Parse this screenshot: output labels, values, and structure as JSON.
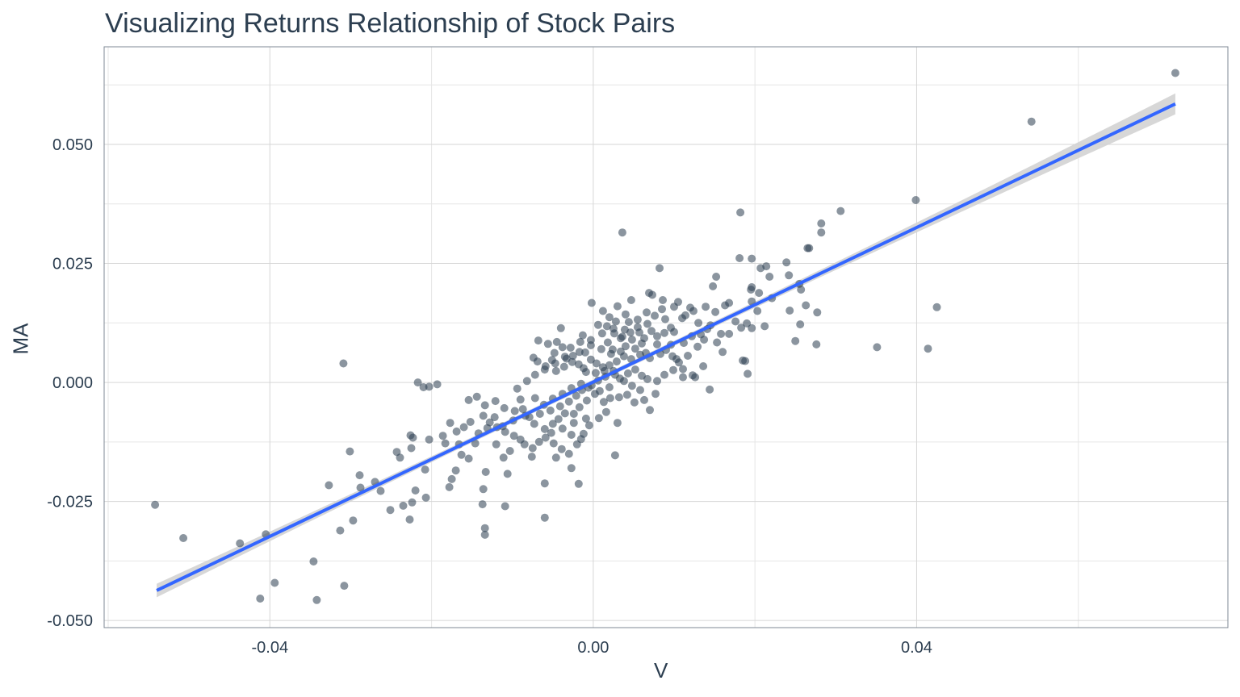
{
  "chart_data": {
    "type": "scatter",
    "title": "Visualizing Returns Relationship of Stock Pairs",
    "xlabel": "V",
    "ylabel": "MA",
    "xlim": [
      -0.0605,
      0.0785
    ],
    "ylim": [
      -0.0515,
      0.0705
    ],
    "x_ticks": [
      -0.04,
      0.0,
      0.04
    ],
    "x_tick_labels": [
      "-0.04",
      "0.00",
      "0.04"
    ],
    "y_ticks": [
      -0.05,
      -0.025,
      0.0,
      0.025,
      0.05
    ],
    "y_tick_labels": [
      "-0.050",
      "-0.025",
      "0.000",
      "0.025",
      "0.050"
    ],
    "grid": true,
    "point_color": "#2c3e50",
    "trend_color": "#3366ff",
    "band_color": "#d3d3d3",
    "trend_line": {
      "x": [
        -0.054,
        0.072
      ],
      "y": [
        -0.0437,
        0.0585
      ],
      "band_halfwidth_ends": 0.0022,
      "band_halfwidth_center": 0.0005
    },
    "points": [
      [
        0.072,
        0.065
      ],
      [
        0.0542,
        0.0548
      ],
      [
        0.0399,
        0.0383
      ],
      [
        0.0306,
        0.036
      ],
      [
        0.0182,
        0.0357
      ],
      [
        0.0282,
        0.0334
      ],
      [
        0.0282,
        0.0315
      ],
      [
        0.0036,
        0.0315
      ],
      [
        0.0267,
        0.0282
      ],
      [
        0.0265,
        0.0282
      ],
      [
        0.0239,
        0.0252
      ],
      [
        0.0181,
        0.0261
      ],
      [
        0.0196,
        0.026
      ],
      [
        0.0214,
        0.0244
      ],
      [
        0.0207,
        0.024
      ],
      [
        0.0082,
        0.024
      ],
      [
        0.0218,
        0.0222
      ],
      [
        0.0242,
        0.0225
      ],
      [
        0.0255,
        0.0207
      ],
      [
        0.0257,
        0.0195
      ],
      [
        0.0196,
        0.02
      ],
      [
        0.0195,
        0.0195
      ],
      [
        0.0205,
        0.0188
      ],
      [
        0.0221,
        0.0177
      ],
      [
        0.0152,
        0.0222
      ],
      [
        0.0148,
        0.0202
      ],
      [
        0.0069,
        0.0188
      ],
      [
        0.0073,
        0.0184
      ],
      [
        0.0086,
        0.0173
      ],
      [
        0.0047,
        0.0173
      ],
      [
        -0.0002,
        0.0167
      ],
      [
        0.0105,
        0.0169
      ],
      [
        0.0168,
        0.0167
      ],
      [
        0.0163,
        0.0162
      ],
      [
        0.0139,
        0.0159
      ],
      [
        0.012,
        0.0157
      ],
      [
        0.0124,
        0.015
      ],
      [
        0.0151,
        0.0148
      ],
      [
        0.0196,
        0.017
      ],
      [
        0.0203,
        0.015
      ],
      [
        0.0243,
        0.0151
      ],
      [
        0.0263,
        0.0162
      ],
      [
        0.0277,
        0.0147
      ],
      [
        0.0425,
        0.0158
      ],
      [
        0.0256,
        0.0122
      ],
      [
        0.0212,
        0.0118
      ],
      [
        0.0196,
        0.0114
      ],
      [
        0.0183,
        0.0115
      ],
      [
        0.0145,
        0.012
      ],
      [
        0.0168,
        0.0102
      ],
      [
        0.0133,
        0.0101
      ],
      [
        0.01,
        0.0106
      ],
      [
        0.0088,
        0.0104
      ],
      [
        0.0072,
        0.0108
      ],
      [
        0.0057,
        0.0105
      ],
      [
        0.0039,
        0.0111
      ],
      [
        0.0025,
        0.0113
      ],
      [
        0.0017,
        0.0118
      ],
      [
        0.002,
        0.0137
      ],
      [
        0.0028,
        0.0128
      ],
      [
        0.0044,
        0.0127
      ],
      [
        0.0006,
        0.0121
      ],
      [
        -0.004,
        0.0114
      ],
      [
        -0.0068,
        0.0088
      ],
      [
        -0.0045,
        0.0085
      ],
      [
        -0.0013,
        0.0099
      ],
      [
        -0.0028,
        0.0073
      ],
      [
        -0.0056,
        0.0081
      ],
      [
        -0.0038,
        0.0074
      ],
      [
        -0.0074,
        0.0052
      ],
      [
        -0.0051,
        0.0047
      ],
      [
        -0.0025,
        0.0056
      ],
      [
        -0.001,
        0.0063
      ],
      [
        0.001,
        0.007
      ],
      [
        0.0024,
        0.0069
      ],
      [
        0.004,
        0.0076
      ],
      [
        0.006,
        0.0082
      ],
      [
        0.0079,
        0.008
      ],
      [
        0.0096,
        0.0079
      ],
      [
        0.0112,
        0.0083
      ],
      [
        0.0129,
        0.0075
      ],
      [
        0.0153,
        0.0084
      ],
      [
        0.016,
        0.0064
      ],
      [
        0.0185,
        0.0046
      ],
      [
        0.0188,
        0.0045
      ],
      [
        0.025,
        0.0087
      ],
      [
        0.0276,
        0.008
      ],
      [
        0.0351,
        0.0074
      ],
      [
        0.0414,
        0.0071
      ],
      [
        0.0191,
        0.0018
      ],
      [
        0.0136,
        0.0034
      ],
      [
        0.0123,
        0.0015
      ],
      [
        0.0111,
        0.0028
      ],
      [
        0.0106,
        0.0042
      ],
      [
        0.0098,
        0.0055
      ],
      [
        0.0083,
        0.006
      ],
      [
        0.007,
        0.0051
      ],
      [
        0.0058,
        0.0058
      ],
      [
        0.0047,
        0.0049
      ],
      [
        0.0038,
        0.0055
      ],
      [
        0.0029,
        0.0044
      ],
      [
        0.002,
        0.0036
      ],
      [
        0.0012,
        0.0032
      ],
      [
        0.0004,
        0.004
      ],
      [
        -0.0003,
        0.0048
      ],
      [
        -0.0012,
        0.003
      ],
      [
        -0.0018,
        0.0038
      ],
      [
        -0.0026,
        0.0043
      ],
      [
        -0.0036,
        0.0033
      ],
      [
        -0.0046,
        0.0024
      ],
      [
        -0.0059,
        0.0034
      ],
      [
        -0.0072,
        0.0016
      ],
      [
        -0.0069,
        0.0044
      ],
      [
        -0.0082,
        0.0003
      ],
      [
        -0.0094,
        -0.0013
      ],
      [
        -0.009,
        -0.0036
      ],
      [
        -0.0072,
        -0.0033
      ],
      [
        -0.0061,
        -0.0047
      ],
      [
        -0.005,
        -0.0034
      ],
      [
        -0.0038,
        -0.0024
      ],
      [
        -0.0027,
        -0.0012
      ],
      [
        -0.0015,
        -0.0003
      ],
      [
        -0.0006,
        -0.0011
      ],
      [
        0.0006,
        0.0004
      ],
      [
        0.0015,
        0.0012
      ],
      [
        0.0025,
        0.0024
      ],
      [
        0.0033,
        0.0008
      ],
      [
        0.0043,
        0.0019
      ],
      [
        0.0052,
        0.0027
      ],
      [
        0.006,
        0.0014
      ],
      [
        0.0067,
        0.0007
      ],
      [
        0.0079,
        0.0003
      ],
      [
        0.0088,
        0.0016
      ],
      [
        0.0099,
        0.0026
      ],
      [
        0.0111,
        0.0011
      ],
      [
        0.0126,
        0.0011
      ],
      [
        0.0144,
        -0.0015
      ],
      [
        0.0077,
        -0.0024
      ],
      [
        0.0063,
        -0.0037
      ],
      [
        0.0051,
        -0.0042
      ],
      [
        0.0042,
        -0.0026
      ],
      [
        0.0032,
        -0.0031
      ],
      [
        0.0021,
        -0.0033
      ],
      [
        0.0013,
        -0.0041
      ],
      [
        0.0002,
        -0.0024
      ],
      [
        -0.0008,
        -0.0038
      ],
      [
        -0.0017,
        -0.0052
      ],
      [
        -0.0024,
        -0.0066
      ],
      [
        -0.0035,
        -0.0065
      ],
      [
        -0.0043,
        -0.0077
      ],
      [
        -0.005,
        -0.0087
      ],
      [
        -0.006,
        -0.0098
      ],
      [
        -0.0073,
        -0.0087
      ],
      [
        -0.0084,
        -0.007
      ],
      [
        -0.0097,
        -0.006
      ],
      [
        -0.011,
        -0.0054
      ],
      [
        -0.0121,
        -0.0039
      ],
      [
        -0.0134,
        -0.0048
      ],
      [
        -0.0144,
        -0.003
      ],
      [
        -0.0154,
        -0.0037
      ],
      [
        -0.0136,
        -0.007
      ],
      [
        -0.0128,
        -0.0084
      ],
      [
        -0.0119,
        -0.0094
      ],
      [
        -0.0109,
        -0.0104
      ],
      [
        -0.0098,
        -0.0112
      ],
      [
        -0.009,
        -0.012
      ],
      [
        -0.0085,
        -0.013
      ],
      [
        -0.0075,
        -0.0138
      ],
      [
        -0.0067,
        -0.0125
      ],
      [
        -0.0059,
        -0.0116
      ],
      [
        -0.0049,
        -0.0128
      ],
      [
        -0.0039,
        -0.014
      ],
      [
        -0.003,
        -0.015
      ],
      [
        -0.002,
        -0.013
      ],
      [
        -0.0012,
        -0.0108
      ],
      [
        -0.0005,
        -0.009
      ],
      [
        0.0007,
        -0.0075
      ],
      [
        0.0016,
        -0.0062
      ],
      [
        0.003,
        -0.0085
      ],
      [
        0.007,
        -0.0058
      ],
      [
        -0.0027,
        -0.018
      ],
      [
        -0.0046,
        -0.0158
      ],
      [
        -0.006,
        -0.0212
      ],
      [
        -0.0018,
        -0.0213
      ],
      [
        0.0027,
        -0.0153
      ],
      [
        -0.006,
        -0.0284
      ],
      [
        -0.0106,
        -0.0192
      ],
      [
        -0.0109,
        -0.026
      ],
      [
        -0.0133,
        -0.0188
      ],
      [
        -0.0136,
        -0.0224
      ],
      [
        -0.0134,
        -0.0306
      ],
      [
        -0.0134,
        -0.032
      ],
      [
        -0.0137,
        -0.0256
      ],
      [
        -0.0154,
        -0.016
      ],
      [
        -0.017,
        -0.0185
      ],
      [
        -0.0175,
        -0.0203
      ],
      [
        -0.0178,
        -0.022
      ],
      [
        -0.0163,
        -0.0152
      ],
      [
        -0.0166,
        -0.013
      ],
      [
        -0.0183,
        -0.0128
      ],
      [
        -0.0186,
        -0.0112
      ],
      [
        -0.0203,
        -0.012
      ],
      [
        -0.0208,
        -0.0183
      ],
      [
        -0.0207,
        -0.0242
      ],
      [
        -0.022,
        -0.0227
      ],
      [
        -0.0223,
        -0.0116
      ],
      [
        -0.0226,
        -0.0111
      ],
      [
        -0.0225,
        -0.0138
      ],
      [
        -0.0239,
        -0.0158
      ],
      [
        -0.0243,
        -0.0146
      ],
      [
        -0.0251,
        -0.0268
      ],
      [
        -0.0224,
        -0.0252
      ],
      [
        -0.0227,
        -0.0288
      ],
      [
        -0.0235,
        -0.0259
      ],
      [
        -0.0263,
        -0.0228
      ],
      [
        -0.027,
        -0.0209
      ],
      [
        -0.0288,
        -0.0221
      ],
      [
        -0.0297,
        -0.029
      ],
      [
        -0.0289,
        -0.0195
      ],
      [
        -0.0301,
        -0.0145
      ],
      [
        -0.0327,
        -0.0216
      ],
      [
        -0.0308,
        -0.0427
      ],
      [
        -0.0313,
        -0.0311
      ],
      [
        -0.0346,
        -0.0376
      ],
      [
        -0.0342,
        -0.0457
      ],
      [
        -0.0394,
        -0.0421
      ],
      [
        -0.0405,
        -0.0319
      ],
      [
        -0.0412,
        -0.0454
      ],
      [
        -0.0437,
        -0.0338
      ],
      [
        -0.0507,
        -0.0327
      ],
      [
        -0.0542,
        -0.0257
      ],
      [
        -0.0309,
        0.004
      ],
      [
        -0.0217,
        0.0
      ],
      [
        -0.021,
        -0.001
      ],
      [
        -0.0203,
        -0.0009
      ],
      [
        -0.0193,
        -0.0004
      ],
      [
        0.003,
        0.016
      ],
      [
        0.0012,
        0.015
      ],
      [
        0.0066,
        0.0147
      ],
      [
        0.0089,
        0.0133
      ],
      [
        0.011,
        0.0135
      ],
      [
        0.0096,
        0.0115
      ],
      [
        0.0079,
        0.0097
      ],
      [
        0.0063,
        0.0093
      ],
      [
        0.0048,
        0.009
      ],
      [
        0.0034,
        0.0093
      ],
      [
        0.0018,
        0.0084
      ],
      [
        -0.0003,
        0.0078
      ],
      [
        -0.0017,
        0.0064
      ],
      [
        -0.0033,
        0.005
      ],
      [
        -0.0047,
        0.004
      ],
      [
        -0.006,
        0.0027
      ],
      [
        -0.0009,
        0.0022
      ],
      [
        0.0003,
        0.002
      ],
      [
        0.0014,
        0.0024
      ],
      [
        0.0027,
        0.0016
      ],
      [
        0.0038,
        0.0003
      ],
      [
        0.0048,
        -0.0007
      ],
      [
        0.0058,
        -0.0016
      ],
      [
        0.002,
        -0.001
      ],
      [
        0.0008,
        -0.0018
      ],
      [
        -0.0002,
        -0.0006
      ],
      [
        -0.0014,
        -0.0016
      ],
      [
        -0.0021,
        -0.0028
      ],
      [
        -0.003,
        -0.004
      ],
      [
        -0.0041,
        -0.005
      ],
      [
        -0.0053,
        -0.0059
      ],
      [
        -0.0066,
        -0.0066
      ],
      [
        -0.0079,
        -0.0073
      ],
      [
        -0.0087,
        -0.0056
      ],
      [
        -0.0099,
        -0.008
      ],
      [
        -0.0112,
        -0.0092
      ],
      [
        -0.0122,
        -0.0073
      ],
      [
        -0.0131,
        -0.0096
      ],
      [
        -0.0142,
        -0.0107
      ],
      [
        -0.0152,
        -0.0083
      ],
      [
        -0.016,
        -0.0094
      ],
      [
        -0.0169,
        -0.0103
      ],
      [
        -0.0177,
        -0.0085
      ],
      [
        -0.0146,
        -0.0128
      ],
      [
        -0.012,
        -0.013
      ],
      [
        -0.0103,
        -0.0144
      ],
      [
        -0.0111,
        -0.0158
      ],
      [
        -0.0076,
        -0.0156
      ],
      [
        -0.0052,
        -0.0106
      ],
      [
        -0.0038,
        -0.0097
      ],
      [
        -0.0024,
        -0.0085
      ],
      [
        -0.0009,
        -0.0076
      ],
      [
        -0.0015,
        -0.0119
      ],
      [
        -0.0027,
        -0.011
      ],
      [
        0.0122,
        0.0097
      ],
      [
        0.0137,
        0.009
      ],
      [
        0.0158,
        0.0102
      ],
      [
        0.0176,
        0.0128
      ],
      [
        0.019,
        0.0124
      ],
      [
        0.0141,
        0.0112
      ],
      [
        0.013,
        0.0125
      ],
      [
        0.0114,
        0.0141
      ],
      [
        0.01,
        0.0159
      ],
      [
        0.0085,
        0.0154
      ],
      [
        0.0076,
        0.014
      ],
      [
        0.0055,
        0.0132
      ],
      [
        0.004,
        0.0143
      ],
      [
        0.0011,
        0.0103
      ],
      [
        -0.0003,
        0.0089
      ],
      [
        -0.0016,
        0.0085
      ],
      [
        -0.0035,
        0.0054
      ],
      [
        -0.0048,
        0.0062
      ],
      [
        0.0067,
        0.0123
      ],
      [
        0.0055,
        0.0116
      ],
      [
        0.0046,
        0.0105
      ],
      [
        0.0036,
        0.0096
      ],
      [
        0.0026,
        0.0103
      ],
      [
        0.0022,
        0.006
      ],
      [
        0.0034,
        0.0065
      ],
      [
        0.0052,
        0.0071
      ],
      [
        0.0065,
        0.0062
      ],
      [
        0.009,
        0.0068
      ],
      [
        0.0103,
        0.0049
      ],
      [
        0.0117,
        0.0056
      ]
    ]
  }
}
